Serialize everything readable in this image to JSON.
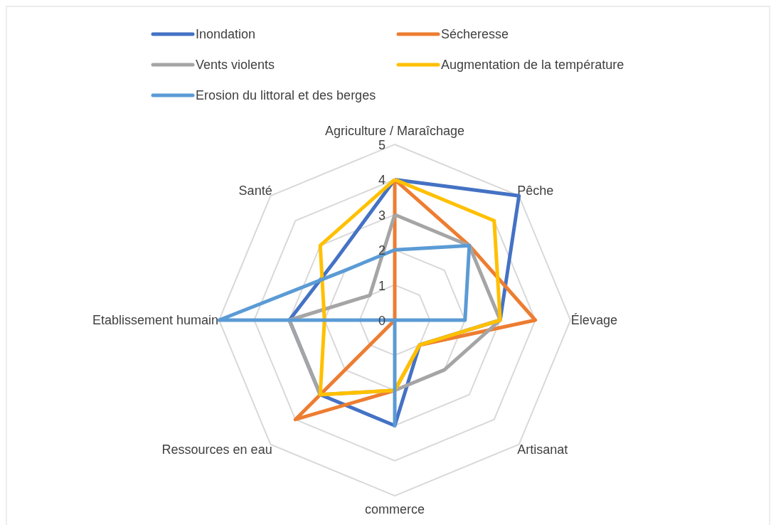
{
  "chart_data": {
    "type": "radar",
    "categories": [
      "Agriculture / Maraîchage",
      "Pêche",
      "Élevage",
      "Artisanat",
      "commerce",
      "Ressources en eau",
      "Etablissement humain",
      "Santé"
    ],
    "series": [
      {
        "name": "Inondation",
        "color": "#4472c4",
        "values": [
          4,
          5,
          3,
          1,
          3,
          3,
          3,
          2.4
        ]
      },
      {
        "name": "Sécheresse",
        "color": "#ed7d31",
        "values": [
          4,
          3,
          4,
          1,
          2,
          4,
          0,
          0
        ]
      },
      {
        "name": "Vents violents",
        "color": "#a5a5a5",
        "values": [
          3,
          3,
          3,
          2,
          2,
          3,
          3,
          1
        ]
      },
      {
        "name": "Augmentation de la température",
        "color": "#ffc000",
        "values": [
          4,
          4,
          3,
          1,
          2,
          3,
          2,
          3
        ]
      },
      {
        "name": "Erosion du littoral et des berges",
        "color": "#5b9bd5",
        "values": [
          2,
          3,
          2,
          0,
          3,
          0,
          5,
          2
        ]
      }
    ],
    "ylim": [
      0,
      5
    ],
    "yticks": [
      0,
      1,
      2,
      3,
      4,
      5
    ],
    "grid": true,
    "legend": "top"
  }
}
